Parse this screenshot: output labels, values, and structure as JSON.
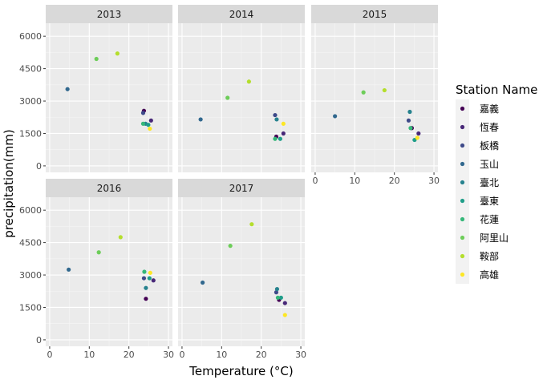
{
  "chart_data": {
    "type": "scatter",
    "facet_by": "year",
    "xlabel": "Temperature (°C)",
    "ylabel": "precipitation(mm)",
    "xlim": [
      -1,
      31
    ],
    "ylim": [
      -300,
      6600
    ],
    "x_ticks": [
      0,
      10,
      20,
      30
    ],
    "y_ticks": [
      0,
      1500,
      3000,
      4500,
      6000
    ],
    "grid": true,
    "legend_title": "Station Name",
    "legend_position": "right",
    "stations": [
      {
        "name": "嘉義",
        "color": "#440154"
      },
      {
        "name": "恆春",
        "color": "#482878"
      },
      {
        "name": "板橋",
        "color": "#3E4A89"
      },
      {
        "name": "玉山",
        "color": "#31688E"
      },
      {
        "name": "臺北",
        "color": "#26828E"
      },
      {
        "name": "臺東",
        "color": "#1F9E89"
      },
      {
        "name": "花蓮",
        "color": "#35B779"
      },
      {
        "name": "阿里山",
        "color": "#6DCD59"
      },
      {
        "name": "鞍部",
        "color": "#B4DE2C"
      },
      {
        "name": "高雄",
        "color": "#FDE725"
      }
    ],
    "panels": [
      {
        "label": "2013",
        "points": [
          {
            "station": "嘉義",
            "x": 23.8,
            "y": 2550
          },
          {
            "station": "恆春",
            "x": 25.6,
            "y": 2100
          },
          {
            "station": "板橋",
            "x": 23.6,
            "y": 2450
          },
          {
            "station": "玉山",
            "x": 4.5,
            "y": 3550
          },
          {
            "station": "臺北",
            "x": 24.2,
            "y": 1950
          },
          {
            "station": "臺東",
            "x": 24.9,
            "y": 1900
          },
          {
            "station": "花蓮",
            "x": 23.6,
            "y": 1950
          },
          {
            "station": "阿里山",
            "x": 11.8,
            "y": 4950
          },
          {
            "station": "鞍部",
            "x": 17.1,
            "y": 5200
          },
          {
            "station": "高雄",
            "x": 25.3,
            "y": 1720
          }
        ]
      },
      {
        "label": "2014",
        "points": [
          {
            "station": "嘉義",
            "x": 23.8,
            "y": 1350
          },
          {
            "station": "恆春",
            "x": 25.6,
            "y": 1500
          },
          {
            "station": "板橋",
            "x": 23.5,
            "y": 2350
          },
          {
            "station": "玉山",
            "x": 4.7,
            "y": 2150
          },
          {
            "station": "臺北",
            "x": 23.9,
            "y": 2150
          },
          {
            "station": "臺東",
            "x": 24.8,
            "y": 1250
          },
          {
            "station": "花蓮",
            "x": 23.5,
            "y": 1250
          },
          {
            "station": "阿里山",
            "x": 11.5,
            "y": 3150
          },
          {
            "station": "鞍部",
            "x": 16.9,
            "y": 3900
          },
          {
            "station": "高雄",
            "x": 25.6,
            "y": 1950
          }
        ]
      },
      {
        "label": "2015",
        "points": [
          {
            "station": "嘉義",
            "x": 24.4,
            "y": 1750
          },
          {
            "station": "恆春",
            "x": 26.1,
            "y": 1500
          },
          {
            "station": "板橋",
            "x": 23.6,
            "y": 2100
          },
          {
            "station": "玉山",
            "x": 5.0,
            "y": 2300
          },
          {
            "station": "臺北",
            "x": 23.9,
            "y": 2500
          },
          {
            "station": "臺東",
            "x": 25.1,
            "y": 1200
          },
          {
            "station": "花蓮",
            "x": 24.1,
            "y": 1750
          },
          {
            "station": "阿里山",
            "x": 12.2,
            "y": 3400
          },
          {
            "station": "鞍部",
            "x": 17.5,
            "y": 3500
          },
          {
            "station": "高雄",
            "x": 25.8,
            "y": 1300
          }
        ]
      },
      {
        "label": "2016",
        "points": [
          {
            "station": "嘉義",
            "x": 24.3,
            "y": 1900
          },
          {
            "station": "恆春",
            "x": 26.2,
            "y": 2750
          },
          {
            "station": "板橋",
            "x": 23.8,
            "y": 2850
          },
          {
            "station": "玉山",
            "x": 4.8,
            "y": 3250
          },
          {
            "station": "臺北",
            "x": 24.3,
            "y": 2400
          },
          {
            "station": "臺東",
            "x": 25.2,
            "y": 2850
          },
          {
            "station": "花蓮",
            "x": 23.9,
            "y": 3150
          },
          {
            "station": "阿里山",
            "x": 12.4,
            "y": 4050
          },
          {
            "station": "鞍部",
            "x": 17.9,
            "y": 4750
          },
          {
            "station": "高雄",
            "x": 25.4,
            "y": 3100
          }
        ]
      },
      {
        "label": "2017",
        "points": [
          {
            "station": "嘉義",
            "x": 24.5,
            "y": 1850
          },
          {
            "station": "恆春",
            "x": 26.0,
            "y": 1700
          },
          {
            "station": "板橋",
            "x": 23.8,
            "y": 2200
          },
          {
            "station": "玉山",
            "x": 5.2,
            "y": 2650
          },
          {
            "station": "臺北",
            "x": 24.0,
            "y": 2350
          },
          {
            "station": "臺東",
            "x": 25.0,
            "y": 1950
          },
          {
            "station": "花蓮",
            "x": 24.2,
            "y": 1950
          },
          {
            "station": "阿里山",
            "x": 12.2,
            "y": 4350
          },
          {
            "station": "鞍部",
            "x": 17.6,
            "y": 5350
          },
          {
            "station": "高雄",
            "x": 26.0,
            "y": 1150
          }
        ]
      }
    ]
  }
}
